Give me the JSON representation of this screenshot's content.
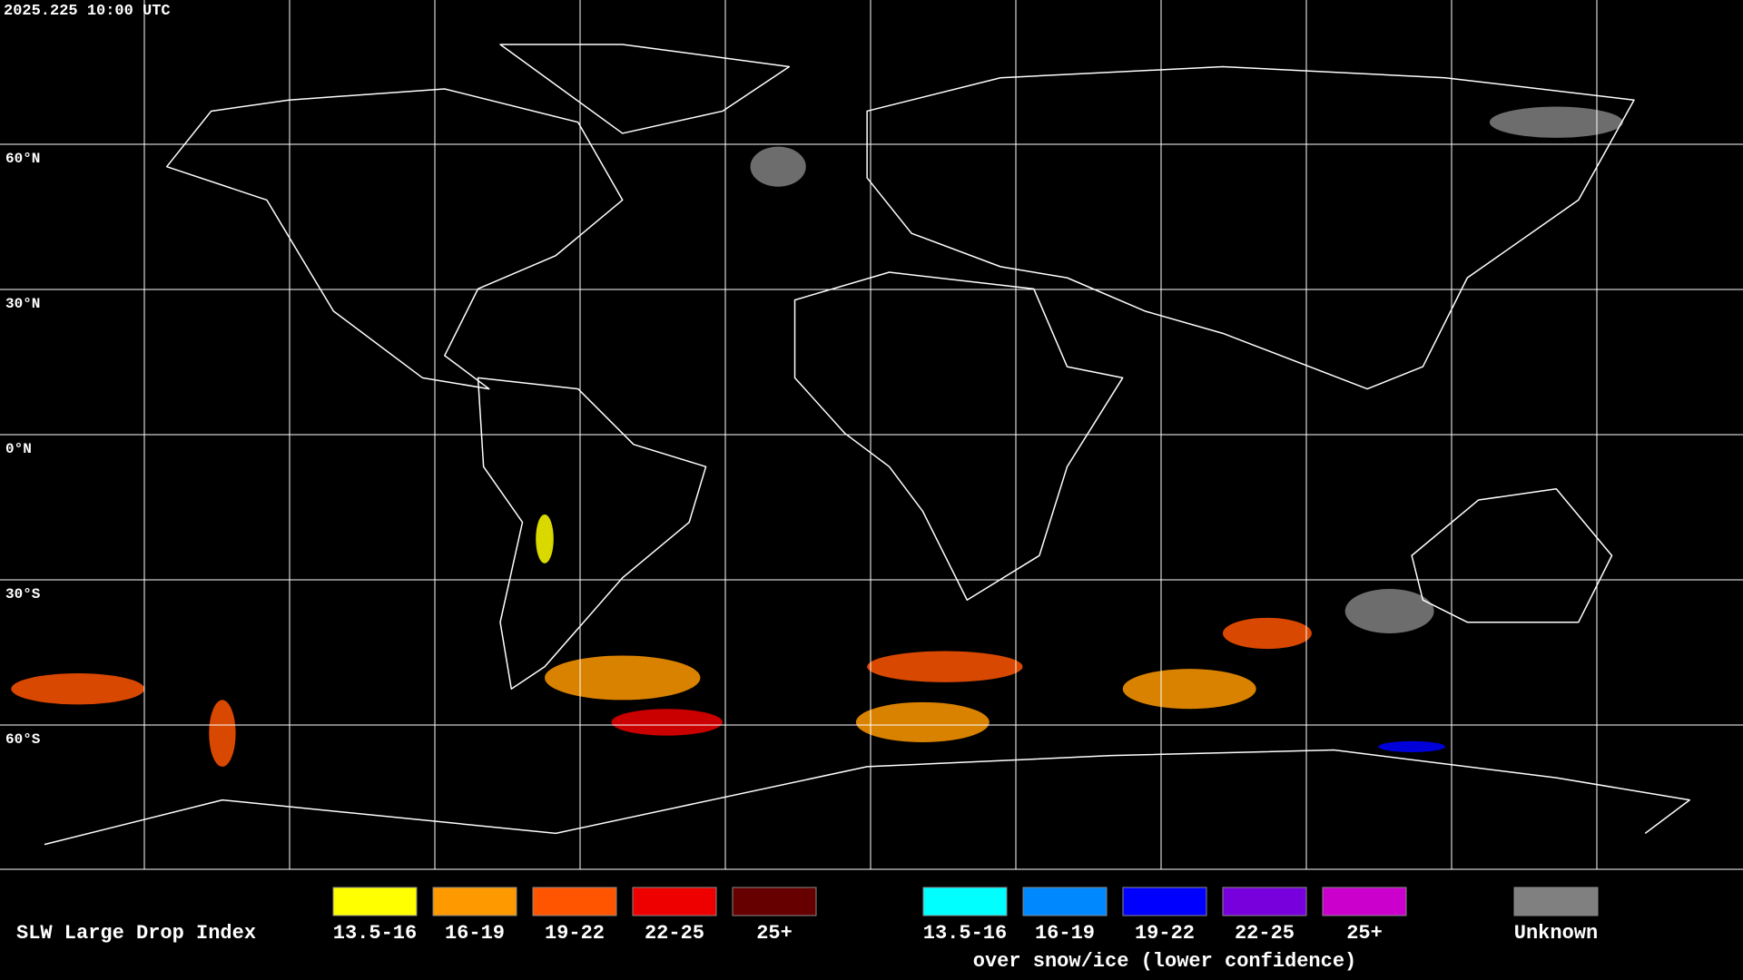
{
  "timestamp": "2025.225 10:00 UTC",
  "latitude_labels": [
    "60°N",
    "30°N",
    "0°N",
    "30°S",
    "60°S"
  ],
  "legend": {
    "title": "SLW Large Drop Index",
    "groups": [
      {
        "items": [
          {
            "label": "13.5-16",
            "color": "#ffff00"
          },
          {
            "label": "16-19",
            "color": "#ff9900"
          },
          {
            "label": "19-22",
            "color": "#ff5500"
          },
          {
            "label": "22-25",
            "color": "#ee0000"
          },
          {
            "label": "25+",
            "color": "#660000"
          }
        ]
      },
      {
        "items": [
          {
            "label": "13.5-16",
            "color": "#00ffff"
          },
          {
            "label": "16-19",
            "color": "#0088ff"
          },
          {
            "label": "19-22",
            "color": "#0000ff"
          },
          {
            "label": "22-25",
            "color": "#7700dd"
          },
          {
            "label": "25+",
            "color": "#cc00cc"
          }
        ],
        "caption": "over snow/ice (lower confidence)"
      },
      {
        "items": [
          {
            "label": "Unknown",
            "color": "#808080"
          }
        ]
      }
    ]
  }
}
